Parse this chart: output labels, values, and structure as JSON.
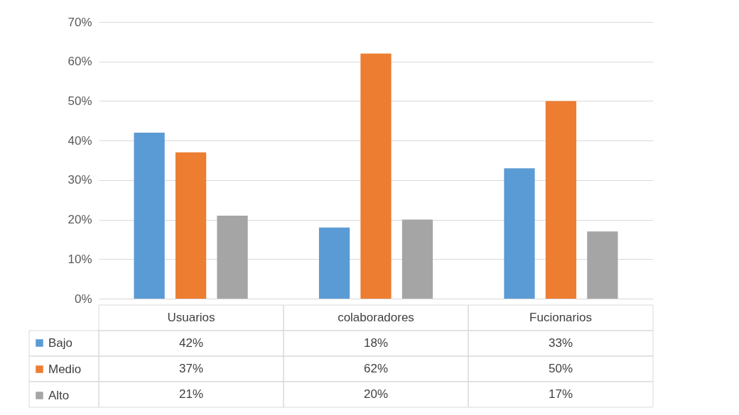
{
  "chart_data": {
    "type": "bar",
    "categories": [
      "Usuarios",
      "colaboradores",
      "Fucionarios"
    ],
    "series": [
      {
        "name": "Bajo",
        "color": "#5b9bd5",
        "values": [
          42,
          18,
          33
        ],
        "value_labels": [
          "42%",
          "18%",
          "33%"
        ]
      },
      {
        "name": "Medio",
        "color": "#ed7d31",
        "values": [
          37,
          62,
          50
        ],
        "value_labels": [
          "37%",
          "62%",
          "50%"
        ]
      },
      {
        "name": "Alto",
        "color": "#a5a5a5",
        "values": [
          21,
          20,
          17
        ],
        "value_labels": [
          "21%",
          "20%",
          "17%"
        ]
      }
    ],
    "ylim": [
      0,
      70
    ],
    "yticks": [
      {
        "value": 0,
        "label": "0%"
      },
      {
        "value": 10,
        "label": "10%"
      },
      {
        "value": 20,
        "label": "20%"
      },
      {
        "value": 30,
        "label": "30%"
      },
      {
        "value": 40,
        "label": "40%"
      },
      {
        "value": 50,
        "label": "50%"
      },
      {
        "value": 60,
        "label": "60%"
      },
      {
        "value": 70,
        "label": "70%"
      }
    ],
    "grid": "y",
    "legend": "bottom left"
  }
}
